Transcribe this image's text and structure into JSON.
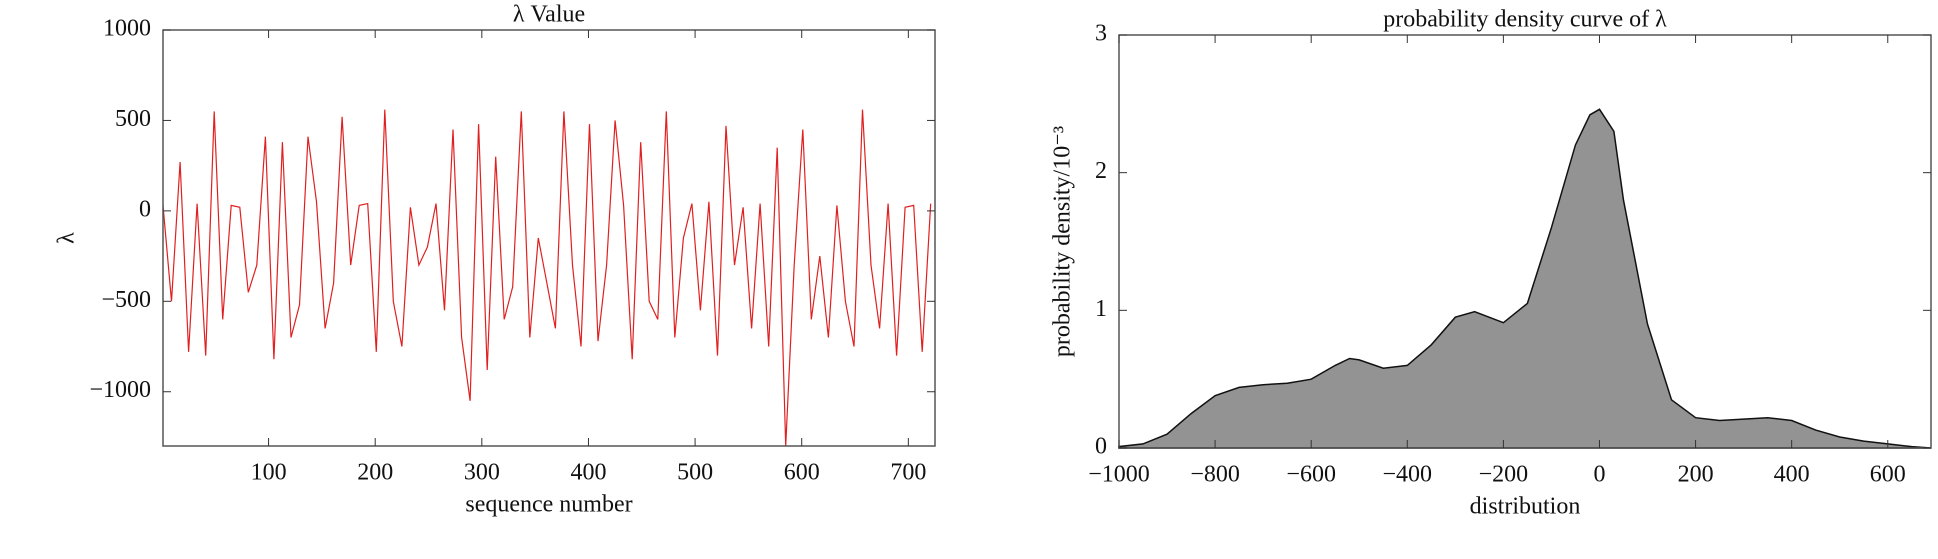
{
  "chart_data": [
    {
      "type": "line",
      "title": "λ Value",
      "x_label": "sequence number",
      "y_label": "λ",
      "color": "#e02020",
      "x": [
        1,
        9,
        17,
        25,
        33,
        41,
        49,
        57,
        65,
        73,
        81,
        89,
        97,
        105,
        113,
        121,
        129,
        137,
        145,
        153,
        161,
        169,
        177,
        185,
        193,
        201,
        209,
        217,
        225,
        233,
        241,
        249,
        257,
        265,
        273,
        281,
        289,
        297,
        305,
        313,
        321,
        329,
        337,
        345,
        353,
        361,
        369,
        377,
        385,
        393,
        401,
        409,
        417,
        425,
        433,
        441,
        449,
        457,
        465,
        473,
        481,
        489,
        497,
        505,
        513,
        521,
        529,
        537,
        545,
        553,
        561,
        569,
        577,
        585,
        593,
        601,
        609,
        617,
        625,
        633,
        641,
        649,
        657,
        665,
        673,
        681,
        689,
        697,
        705,
        713,
        721
      ],
      "values": [
        30,
        -500,
        270,
        -780,
        40,
        -800,
        550,
        -600,
        30,
        20,
        -450,
        -300,
        410,
        -820,
        380,
        -700,
        -520,
        410,
        50,
        -650,
        -400,
        520,
        -300,
        30,
        40,
        -780,
        560,
        -500,
        -750,
        20,
        -300,
        -200,
        40,
        -550,
        450,
        -700,
        -1050,
        480,
        -880,
        300,
        -600,
        -420,
        550,
        -700,
        -150,
        -400,
        -650,
        550,
        -300,
        -750,
        480,
        -720,
        -300,
        500,
        30,
        -820,
        380,
        -500,
        -600,
        550,
        -700,
        -150,
        40,
        -550,
        50,
        -800,
        470,
        -300,
        20,
        -650,
        40,
        -750,
        350,
        -1300,
        -300,
        450,
        -600,
        -250,
        -700,
        30,
        -500,
        -750,
        560,
        -300,
        -650,
        40,
        -800,
        20,
        30,
        -780,
        40
      ],
      "xlim": [
        1,
        725
      ],
      "ylim": [
        -1300,
        1000
      ],
      "xticks": [
        100,
        200,
        300,
        400,
        500,
        600,
        700
      ],
      "yticks": [
        {
          "value": -1000,
          "label": "−1000"
        },
        {
          "value": -500,
          "label": "−500"
        },
        0,
        500,
        1000
      ]
    },
    {
      "type": "area",
      "title": "probability density curve of λ",
      "x_label": "distribution",
      "y_label": "probability density/10⁻³",
      "color": "#939393",
      "x": [
        -1000,
        -950,
        -900,
        -850,
        -800,
        -750,
        -700,
        -650,
        -600,
        -550,
        -520,
        -500,
        -450,
        -400,
        -350,
        -300,
        -260,
        -200,
        -150,
        -100,
        -50,
        -20,
        0,
        30,
        50,
        100,
        150,
        200,
        250,
        300,
        350,
        400,
        450,
        500,
        550,
        600,
        650,
        690
      ],
      "values": [
        0.01,
        0.03,
        0.1,
        0.25,
        0.38,
        0.44,
        0.46,
        0.47,
        0.5,
        0.6,
        0.65,
        0.64,
        0.58,
        0.6,
        0.75,
        0.95,
        0.99,
        0.91,
        1.05,
        1.6,
        2.2,
        2.42,
        2.46,
        2.3,
        1.8,
        0.9,
        0.35,
        0.22,
        0.2,
        0.21,
        0.22,
        0.2,
        0.13,
        0.08,
        0.05,
        0.03,
        0.01,
        0.0
      ],
      "xlim": [
        -1000,
        690
      ],
      "ylim": [
        0,
        3
      ],
      "xticks": [
        {
          "value": -1000,
          "label": "−1000"
        },
        {
          "value": -800,
          "label": "−800"
        },
        {
          "value": -600,
          "label": "−600"
        },
        {
          "value": -400,
          "label": "−400"
        },
        {
          "value": -200,
          "label": "−200"
        },
        0,
        200,
        400,
        600
      ],
      "yticks": [
        0,
        1,
        2,
        3
      ]
    }
  ]
}
